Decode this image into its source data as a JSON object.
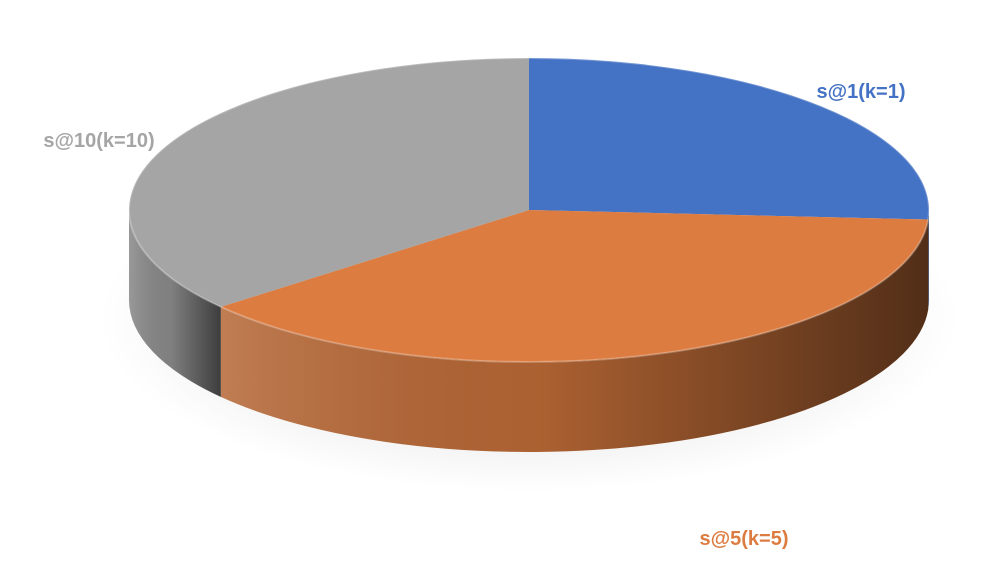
{
  "chart_data": {
    "type": "pie",
    "style": "3d",
    "title": "",
    "legend": "none",
    "start_angle": "12 o'clock, clockwise",
    "slices": [
      {
        "label": "s@1(k=1)",
        "value": 26,
        "color": "#4472C4"
      },
      {
        "label": "s@5(k=5)",
        "value": 38,
        "color": "#DD7C40"
      },
      {
        "label": "s@10(k=10)",
        "value": 36,
        "color": "#A5A5A5"
      }
    ]
  }
}
